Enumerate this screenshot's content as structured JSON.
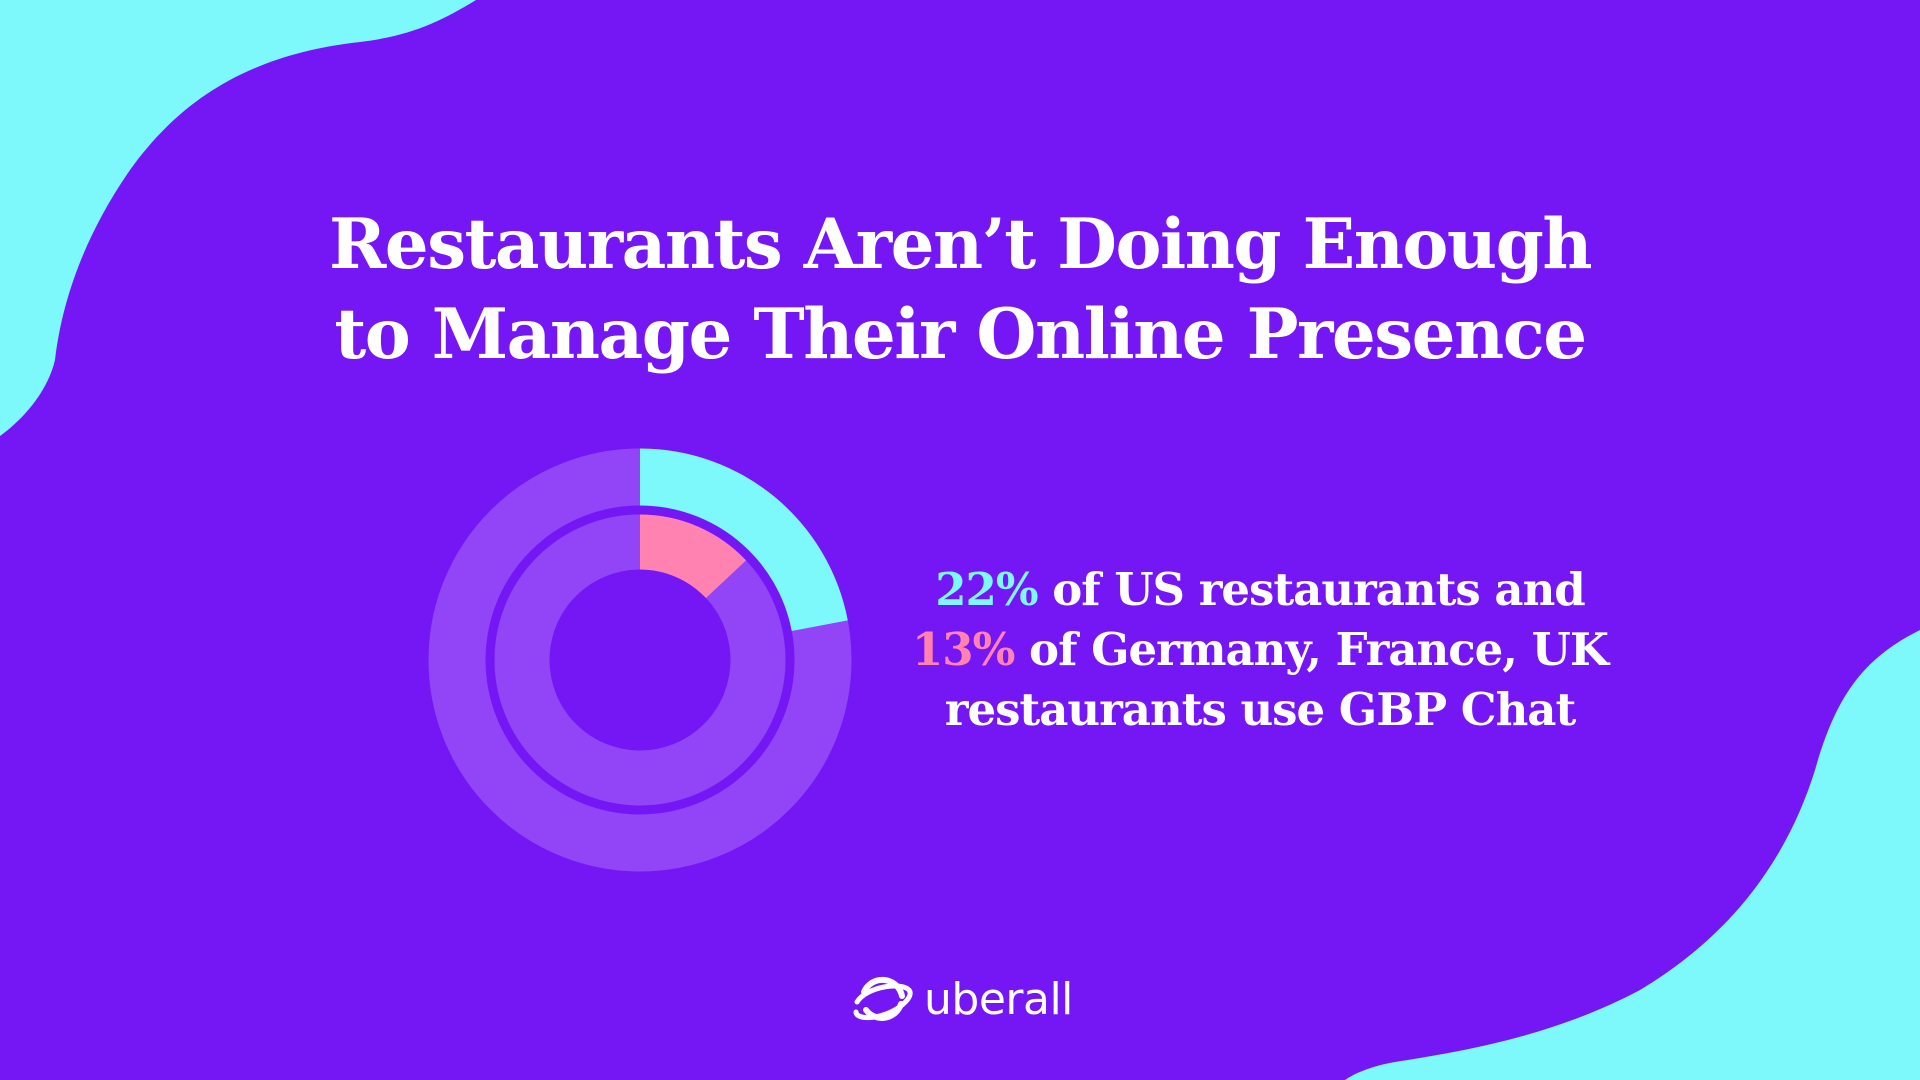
{
  "headline": {
    "line1": "Restaurants Aren’t Doing Enough",
    "line2": "to Manage Their Online Presence"
  },
  "statement": {
    "us_pct": "22%",
    "us_rest": " of US restaurants and",
    "eu_pct": "13%",
    "eu_rest": " of Germany, France, UK",
    "line3": "restaurants use GBP Chat"
  },
  "brand": {
    "name": "uberall",
    "logo_icon": "planet-ring-icon"
  },
  "colors": {
    "background": "#7517f5",
    "blob": "#7df8fb",
    "us_highlight": "#7df8fb",
    "eu_highlight": "#ff82b0",
    "ring_track": "#9145f7",
    "text": "#ffffff"
  },
  "chart_data": {
    "type": "pie",
    "variant": "nested-donut",
    "series": [
      {
        "name": "US restaurants",
        "ring": "outer",
        "value": 22,
        "total": 100,
        "unit": "%",
        "color": "#7df8fb",
        "track_color": "#9145f7"
      },
      {
        "name": "Germany, France, UK restaurants",
        "ring": "inner",
        "value": 13,
        "total": 100,
        "unit": "%",
        "color": "#ff82b0",
        "track_color": "#9145f7"
      }
    ],
    "start_angle": "12 o'clock",
    "direction": "clockwise",
    "legend": "none",
    "labels": "in adjacent text"
  }
}
